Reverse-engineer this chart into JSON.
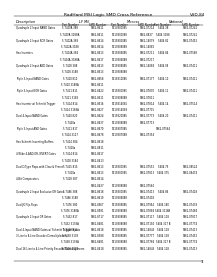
{
  "title": "RadHard MSI Logic SMD Cross Reference",
  "page": "VSD-84",
  "background": "#ffffff",
  "rows": [
    [
      "Quadruple 2-Input NAND Gates",
      "5 7400A 388",
      "5962-8611",
      "5213800085",
      "5962-07214",
      "5404 38",
      "5962-07241"
    ],
    [
      "",
      "5 7400A 3188A",
      "5962-8611",
      "5213800088",
      "5962-8837",
      "5404 3188",
      "5962-07241"
    ],
    [
      "Quadruple 2-Input NOR Gates",
      "5 7402A 388",
      "5962-8614",
      "5215802085",
      "5962-14079",
      "5404 82",
      "5962-07452"
    ],
    [
      "",
      "5 7402A 3188",
      "5962-8614",
      "5213808088",
      "5962-14082",
      "",
      ""
    ],
    [
      "Hex Inverters",
      "5 7404A 384",
      "5962-8613",
      "5215804085",
      "5962-07211",
      "5404 84",
      "5962-07568"
    ],
    [
      "",
      "5 7404A 3188A",
      "5962-8617",
      "5213804088",
      "5962-07217",
      "",
      ""
    ],
    [
      "Quadruple 2-Input AND Gates",
      "5 7408 388",
      "5962-8613",
      "5215808085",
      "5962-14084",
      "5404 08",
      "5962-07411"
    ],
    [
      "",
      "5 7408 3188",
      "5962-8613",
      "5213808088",
      "",
      "",
      ""
    ],
    [
      "Triple 3-Input NAND Gates",
      "5 7410 810",
      "5962-8658",
      "5215810085",
      "5962-07177",
      "5404 10",
      "5962-07411"
    ],
    [
      "",
      "5 7410 3188A",
      "5962-8611",
      "",
      "",
      "",
      ""
    ],
    [
      "Triple 3-Input NOR Gates",
      "5 7411 811",
      "5962-8422",
      "5215800085",
      "5962-07830",
      "5404 11",
      "5962-07411"
    ],
    [
      "",
      "5 7411 3188",
      "5962-8611",
      "5213808088",
      "5962-07811",
      "",
      ""
    ],
    [
      "Hex Inverter w/ Schmitt Trigger",
      "5 7414 814",
      "5962-8616",
      "5215814085",
      "5962-07814",
      "5404 14",
      "5962-07514"
    ],
    [
      "",
      "5 7414 3188A",
      "5962-8627",
      "5213814088",
      "5962-07715",
      "",
      ""
    ],
    [
      "Dual 4-Input NAND Gates",
      "5 7420 820",
      "5962-8624",
      "5215820085",
      "5962-07773",
      "5404 20",
      "5962-07411"
    ],
    [
      "",
      "5 7420a",
      "5962-8637",
      "5213808088",
      "5962-07713",
      "",
      ""
    ],
    [
      "Triple 3-Input AND Gates",
      "5 7411 817",
      "5962-8670",
      "5215807085",
      "",
      "5962-07564",
      ""
    ],
    [
      "",
      "5 7404 3127",
      "5962-8678",
      "5213807088",
      "5962-07354",
      "",
      ""
    ],
    [
      "Hex Schmitt-Inverting Buffers",
      "5 7414 384",
      "5962-8618",
      "",
      "",
      "",
      ""
    ],
    [
      "",
      "5 7410a",
      "5962-8811",
      "",
      "",
      "",
      ""
    ],
    [
      "4 Wide 4-AND-OR-INVERT Gates",
      "5 7414 814",
      "5962-8617",
      "",
      "",
      "",
      ""
    ],
    [
      "",
      "5 7408 3184",
      "5962-8413",
      "",
      "",
      "",
      ""
    ],
    [
      "Dual D-Type Flops with Clear & Preset",
      "5 7415 815",
      "5962-8613",
      "5215800085",
      "5962-07552",
      "5404 75",
      "5962-08524"
    ],
    [
      "",
      "5 7410a",
      "5962-8613",
      "5215800085",
      "5962-07813",
      "5404 375",
      "5962-08474"
    ],
    [
      "4-Bit Comparators",
      "5 7418 387",
      "5962-8614",
      "",
      "",
      "",
      ""
    ],
    [
      "",
      "",
      "5962-8437",
      "5213808088",
      "5962-07564",
      "",
      ""
    ],
    [
      "Quadruple 2-Input Exclusive OR Gates",
      "5 7486 388",
      "5962-8618",
      "5215800085",
      "5962-07413",
      "5404 86",
      "5962-07418"
    ],
    [
      "",
      "5 7486 3188",
      "5962-8619",
      "5213808088",
      "5962-07418",
      "",
      ""
    ],
    [
      "Dual JK Flip-Flops",
      "5 7476 380",
      "5962-8567",
      "5215808085",
      "5962-07954",
      "5404 180",
      "5962-07478"
    ],
    [
      "",
      "5 7476 3188A",
      "5962-8581",
      "5213808088",
      "5962-07884",
      "5404 3116B",
      "5962-07484"
    ],
    [
      "Quadruple 2-Input OR Gates",
      "5 7432 817",
      "5962-8717",
      "5215808085",
      "5962-07117",
      "5404 118",
      "5962-07817"
    ],
    [
      "",
      "5 7432 3178A",
      "5962-8481",
      "5213808088",
      "5962-07194",
      "5404 317 B",
      "5962-07774"
    ],
    [
      "Dual 4-Input NAND Gates w/ Schmitt Trigger Inputs",
      "5 7418 814",
      "5962-8618",
      "5213808085",
      "5962-14843",
      "5404 118",
      "5962-07413"
    ],
    [
      "3-Line to 8-Line Decoder/Demultiplexers",
      "5 7438 3138",
      "5962-8388",
      "5215808085",
      "5962-07777",
      "5404 138",
      "5962-07452"
    ],
    [
      "",
      "5 7438 3178A",
      "5962-8481",
      "5213808088",
      "5962-07784",
      "5404 317 B",
      "5962-07774"
    ],
    [
      "Dual 16-Line to 4-Line Priority Encoder/Demultiplexers",
      "5 7418 3119",
      "5962-8418",
      "5213808085",
      "5962-14843",
      "5404 128",
      "5962-07413"
    ]
  ]
}
